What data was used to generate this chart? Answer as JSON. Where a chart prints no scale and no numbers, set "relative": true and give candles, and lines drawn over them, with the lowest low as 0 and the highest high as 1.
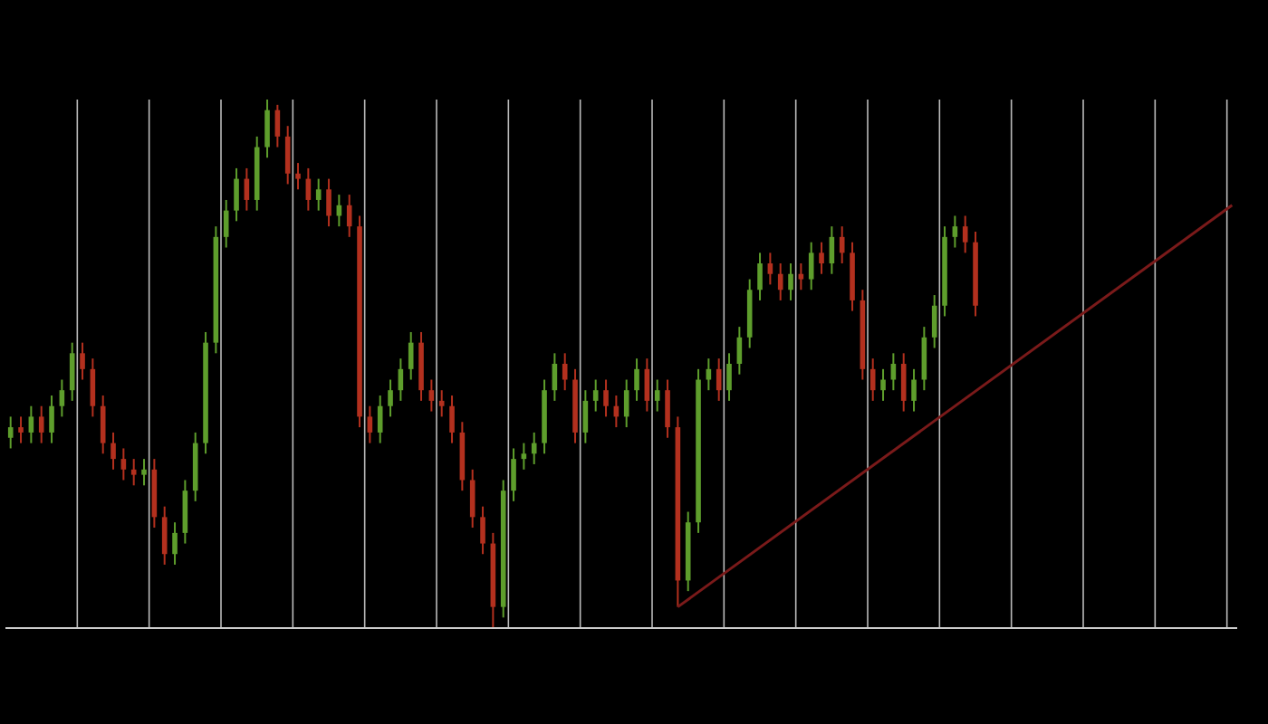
{
  "chart_data": {
    "type": "candlestick",
    "relative": true,
    "grid": "x",
    "categories": [
      null,
      null,
      null,
      null,
      null,
      null,
      null,
      null,
      null,
      null,
      null,
      null,
      null,
      null,
      null,
      null,
      null,
      null,
      null,
      null,
      null,
      null,
      null,
      null,
      null,
      null,
      null,
      null,
      null,
      null,
      null,
      null,
      null,
      null,
      null,
      null,
      null,
      null,
      null,
      null,
      null,
      null,
      null,
      null,
      null,
      null,
      null,
      null,
      null,
      null,
      null,
      null,
      null,
      null,
      null,
      null,
      null,
      null,
      null,
      null,
      null,
      null,
      null,
      null,
      null,
      null,
      null,
      null,
      null,
      null,
      null,
      null,
      null,
      null,
      null,
      null,
      null,
      null,
      null,
      null,
      null,
      null,
      null,
      null,
      null,
      null,
      null,
      null,
      null,
      null,
      null,
      null,
      null,
      null,
      null,
      null,
      null,
      null,
      null,
      null,
      null,
      null,
      null,
      null,
      null,
      null,
      null,
      null,
      null,
      null,
      null,
      null,
      null,
      null,
      null,
      null,
      null,
      null,
      null,
      null
    ],
    "ohlc": [
      [
        0.36,
        0.4,
        0.34,
        0.38
      ],
      [
        0.38,
        0.4,
        0.35,
        0.37
      ],
      [
        0.37,
        0.42,
        0.35,
        0.4
      ],
      [
        0.4,
        0.42,
        0.35,
        0.37
      ],
      [
        0.37,
        0.44,
        0.35,
        0.42
      ],
      [
        0.42,
        0.47,
        0.4,
        0.45
      ],
      [
        0.45,
        0.54,
        0.43,
        0.52
      ],
      [
        0.52,
        0.54,
        0.47,
        0.49
      ],
      [
        0.49,
        0.51,
        0.4,
        0.42
      ],
      [
        0.42,
        0.44,
        0.33,
        0.35
      ],
      [
        0.35,
        0.37,
        0.3,
        0.32
      ],
      [
        0.32,
        0.34,
        0.28,
        0.3
      ],
      [
        0.3,
        0.32,
        0.27,
        0.29
      ],
      [
        0.29,
        0.32,
        0.27,
        0.3
      ],
      [
        0.3,
        0.32,
        0.19,
        0.21
      ],
      [
        0.21,
        0.23,
        0.12,
        0.14
      ],
      [
        0.14,
        0.2,
        0.12,
        0.18
      ],
      [
        0.18,
        0.28,
        0.16,
        0.26
      ],
      [
        0.26,
        0.37,
        0.24,
        0.35
      ],
      [
        0.35,
        0.56,
        0.33,
        0.54
      ],
      [
        0.54,
        0.76,
        0.52,
        0.74
      ],
      [
        0.74,
        0.81,
        0.72,
        0.79
      ],
      [
        0.79,
        0.87,
        0.77,
        0.85
      ],
      [
        0.85,
        0.87,
        0.79,
        0.81
      ],
      [
        0.81,
        0.93,
        0.79,
        0.91
      ],
      [
        0.91,
        1,
        0.89,
        0.98
      ],
      [
        0.98,
        0.99,
        0.91,
        0.93
      ],
      [
        0.93,
        0.95,
        0.84,
        0.86
      ],
      [
        0.86,
        0.88,
        0.83,
        0.85
      ],
      [
        0.85,
        0.87,
        0.79,
        0.81
      ],
      [
        0.81,
        0.85,
        0.79,
        0.83
      ],
      [
        0.83,
        0.85,
        0.76,
        0.78
      ],
      [
        0.78,
        0.82,
        0.76,
        0.8
      ],
      [
        0.8,
        0.82,
        0.74,
        0.76
      ],
      [
        0.76,
        0.78,
        0.38,
        0.4
      ],
      [
        0.4,
        0.42,
        0.35,
        0.37
      ],
      [
        0.37,
        0.44,
        0.35,
        0.42
      ],
      [
        0.42,
        0.47,
        0.4,
        0.45
      ],
      [
        0.45,
        0.51,
        0.43,
        0.49
      ],
      [
        0.49,
        0.56,
        0.47,
        0.54
      ],
      [
        0.54,
        0.56,
        0.43,
        0.45
      ],
      [
        0.45,
        0.47,
        0.41,
        0.43
      ],
      [
        0.43,
        0.45,
        0.4,
        0.42
      ],
      [
        0.42,
        0.44,
        0.35,
        0.37
      ],
      [
        0.37,
        0.39,
        0.26,
        0.28
      ],
      [
        0.28,
        0.3,
        0.19,
        0.21
      ],
      [
        0.21,
        0.23,
        0.14,
        0.16
      ],
      [
        0.16,
        0.18,
        0,
        0.04
      ],
      [
        0.04,
        0.28,
        0.02,
        0.26
      ],
      [
        0.26,
        0.34,
        0.24,
        0.32
      ],
      [
        0.32,
        0.35,
        0.3,
        0.33
      ],
      [
        0.33,
        0.37,
        0.31,
        0.35
      ],
      [
        0.35,
        0.47,
        0.33,
        0.45
      ],
      [
        0.45,
        0.52,
        0.43,
        0.5
      ],
      [
        0.5,
        0.52,
        0.45,
        0.47
      ],
      [
        0.47,
        0.49,
        0.35,
        0.37
      ],
      [
        0.37,
        0.45,
        0.35,
        0.43
      ],
      [
        0.43,
        0.47,
        0.41,
        0.45
      ],
      [
        0.45,
        0.47,
        0.4,
        0.42
      ],
      [
        0.42,
        0.44,
        0.38,
        0.4
      ],
      [
        0.4,
        0.47,
        0.38,
        0.45
      ],
      [
        0.45,
        0.51,
        0.43,
        0.49
      ],
      [
        0.49,
        0.51,
        0.41,
        0.43
      ],
      [
        0.43,
        0.47,
        0.41,
        0.45
      ],
      [
        0.45,
        0.47,
        0.36,
        0.38
      ],
      [
        0.38,
        0.4,
        0.04,
        0.09
      ],
      [
        0.09,
        0.22,
        0.07,
        0.2
      ],
      [
        0.2,
        0.49,
        0.18,
        0.47
      ],
      [
        0.47,
        0.51,
        0.45,
        0.49
      ],
      [
        0.49,
        0.51,
        0.43,
        0.45
      ],
      [
        0.45,
        0.52,
        0.43,
        0.5
      ],
      [
        0.5,
        0.57,
        0.48,
        0.55
      ],
      [
        0.55,
        0.66,
        0.53,
        0.64
      ],
      [
        0.64,
        0.71,
        0.62,
        0.69
      ],
      [
        0.69,
        0.71,
        0.65,
        0.67
      ],
      [
        0.67,
        0.69,
        0.62,
        0.64
      ],
      [
        0.64,
        0.69,
        0.62,
        0.67
      ],
      [
        0.67,
        0.69,
        0.64,
        0.66
      ],
      [
        0.66,
        0.73,
        0.64,
        0.71
      ],
      [
        0.71,
        0.73,
        0.67,
        0.69
      ],
      [
        0.69,
        0.76,
        0.67,
        0.74
      ],
      [
        0.74,
        0.76,
        0.69,
        0.71
      ],
      [
        0.71,
        0.73,
        0.6,
        0.62
      ],
      [
        0.62,
        0.64,
        0.47,
        0.49
      ],
      [
        0.49,
        0.51,
        0.43,
        0.45
      ],
      [
        0.45,
        0.49,
        0.43,
        0.47
      ],
      [
        0.47,
        0.52,
        0.45,
        0.5
      ],
      [
        0.5,
        0.52,
        0.41,
        0.43
      ],
      [
        0.43,
        0.49,
        0.41,
        0.47
      ],
      [
        0.47,
        0.57,
        0.45,
        0.55
      ],
      [
        0.55,
        0.63,
        0.53,
        0.61
      ],
      [
        0.61,
        0.76,
        0.59,
        0.74
      ],
      [
        0.74,
        0.78,
        0.72,
        0.76
      ],
      [
        0.76,
        0.78,
        0.71,
        0.73
      ],
      [
        0.73,
        0.75,
        0.59,
        0.61
      ],
      null,
      null,
      null,
      null,
      null,
      null,
      null,
      null,
      null,
      null,
      null,
      null,
      null,
      null,
      null,
      null,
      null,
      null,
      null,
      null,
      null,
      null,
      null,
      null,
      null
    ],
    "colors": [
      "#5e9e2c",
      "#b3301e",
      "#5e9e2c",
      "#b3301e",
      "#5e9e2c",
      "#5e9e2c",
      "#5e9e2c",
      "#b3301e",
      "#b3301e",
      "#b3301e",
      "#b3301e",
      "#b3301e",
      "#b3301e",
      "#5e9e2c",
      "#b3301e",
      "#b3301e",
      "#5e9e2c",
      "#5e9e2c",
      "#5e9e2c",
      "#5e9e2c",
      "#5e9e2c",
      "#5e9e2c",
      "#5e9e2c",
      "#b3301e",
      "#5e9e2c",
      "#5e9e2c",
      "#b3301e",
      "#b3301e",
      "#b3301e",
      "#b3301e",
      "#5e9e2c",
      "#b3301e",
      "#5e9e2c",
      "#b3301e",
      "#b3301e",
      "#b3301e",
      "#5e9e2c",
      "#5e9e2c",
      "#5e9e2c",
      "#5e9e2c",
      "#b3301e",
      "#b3301e",
      "#b3301e",
      "#b3301e",
      "#b3301e",
      "#b3301e",
      "#b3301e",
      "#b3301e",
      "#5e9e2c",
      "#5e9e2c",
      "#5e9e2c",
      "#5e9e2c",
      "#5e9e2c",
      "#5e9e2c",
      "#b3301e",
      "#b3301e",
      "#5e9e2c",
      "#5e9e2c",
      "#b3301e",
      "#b3301e",
      "#5e9e2c",
      "#5e9e2c",
      "#b3301e",
      "#5e9e2c",
      "#b3301e",
      "#b3301e",
      "#5e9e2c",
      "#5e9e2c",
      "#5e9e2c",
      "#b3301e",
      "#5e9e2c",
      "#5e9e2c",
      "#5e9e2c",
      "#5e9e2c",
      "#b3301e",
      "#b3301e",
      "#5e9e2c",
      "#b3301e",
      "#5e9e2c",
      "#b3301e",
      "#5e9e2c",
      "#b3301e",
      "#b3301e",
      "#b3301e",
      "#b3301e",
      "#5e9e2c",
      "#5e9e2c",
      "#b3301e",
      "#5e9e2c",
      "#5e9e2c",
      "#5e9e2c",
      "#5e9e2c",
      "#5e9e2c",
      "#b3301e",
      "#b3301e",
      null,
      null,
      null,
      null,
      null,
      null,
      null,
      null,
      null,
      null,
      null,
      null,
      null,
      null,
      null,
      null,
      null,
      null,
      null,
      null,
      null,
      null,
      null,
      null,
      null
    ],
    "series": [
      {
        "type": "line",
        "color": "#7a1a1a",
        "values": [
          null,
          null,
          null,
          null,
          null,
          null,
          null,
          null,
          null,
          null,
          null,
          null,
          null,
          null,
          null,
          null,
          null,
          null,
          null,
          null,
          null,
          null,
          null,
          null,
          null,
          null,
          null,
          null,
          null,
          null,
          null,
          null,
          null,
          null,
          null,
          null,
          null,
          null,
          null,
          null,
          null,
          null,
          null,
          null,
          null,
          null,
          null,
          null,
          null,
          null,
          null,
          null,
          null,
          null,
          null,
          null,
          null,
          null,
          null,
          null,
          null,
          null,
          null,
          null,
          null,
          0.04,
          null,
          null,
          null,
          null,
          null,
          null,
          null,
          null,
          null,
          null,
          null,
          null,
          null,
          null,
          null,
          null,
          null,
          null,
          null,
          null,
          null,
          null,
          null,
          null,
          null,
          null,
          null,
          null,
          null,
          null,
          null,
          null,
          null,
          null,
          null,
          null,
          null,
          null,
          null,
          null,
          null,
          null,
          null,
          null,
          null,
          null,
          null,
          null,
          null,
          null,
          null,
          null,
          null,
          0.8
        ]
      }
    ]
  }
}
